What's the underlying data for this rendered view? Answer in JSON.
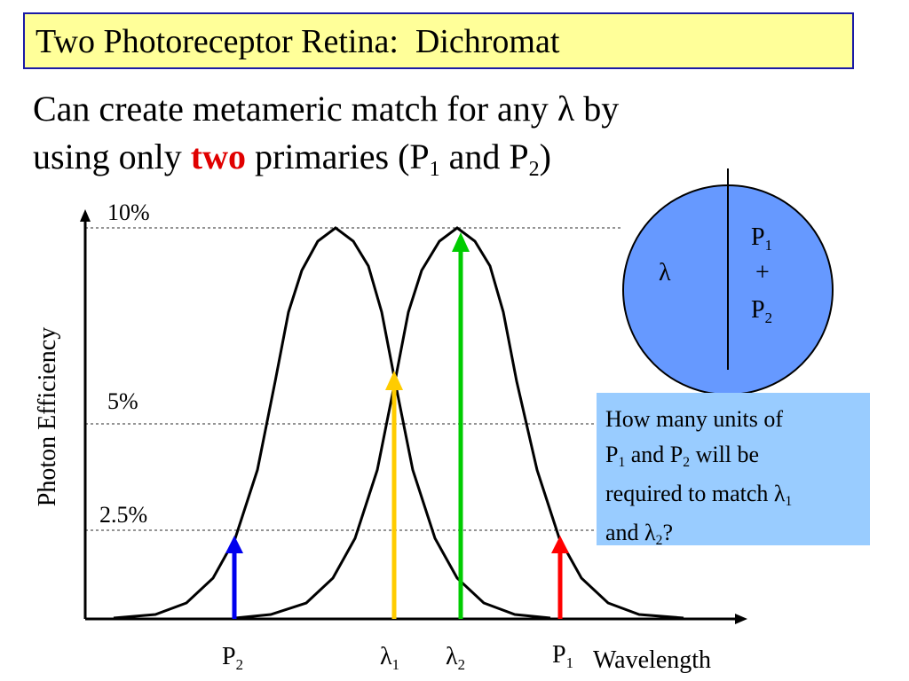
{
  "title": "Two Photoreceptor Retina:  Dichromat",
  "subtitle": {
    "line1_a": "Can create metameric match for any ",
    "line1_lambda": "λ",
    "line1_b": " by",
    "line2_a": "using only ",
    "line2_bold": "two",
    "line2_b": " primaries (P",
    "line2_sub1": "1",
    "line2_c": " and P",
    "line2_sub2": "2",
    "line2_d": ")"
  },
  "chart": {
    "ylabel": "Photon Efficiency",
    "xlabel": "Wavelength",
    "levels": [
      "10%",
      "5%",
      "2.5%"
    ],
    "x_labels": [
      {
        "main": "P",
        "sub": "2"
      },
      {
        "main": "λ",
        "sub": "1"
      },
      {
        "main": "λ",
        "sub": "2"
      },
      {
        "main": "P",
        "sub": "1"
      }
    ],
    "arrow_colors": {
      "p2": "#0000ee",
      "lambda1": "#ffcc00",
      "lambda2": "#00cc00",
      "p1": "#ff0000"
    }
  },
  "circle": {
    "left_label": "λ",
    "right_p1": "P",
    "right_p1_sub": "1",
    "right_plus": "+",
    "right_p2": "P",
    "right_p2_sub": "2",
    "fill": "#6699ff"
  },
  "question": {
    "line1": "How many units of",
    "line2_a": "P",
    "line2_sub1": "1",
    "line2_b": " and P",
    "line2_sub2": "2",
    "line2_c": " will be",
    "line3_a": "required to match ",
    "line3_lambda": "λ",
    "line3_sub": "1",
    "line4_a": "and ",
    "line4_lambda": "λ",
    "line4_sub": "2",
    "line4_b": "?"
  }
}
